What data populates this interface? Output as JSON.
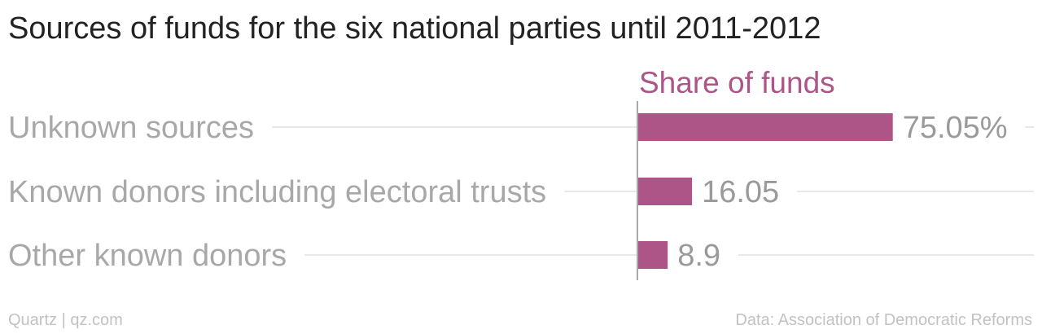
{
  "title": "Sources of funds for the six national parties until 2011-2012",
  "footer": {
    "credit": "Quartz | qz.com",
    "source": "Data: Association of Democratic Reforms"
  },
  "colors": {
    "bar": "#ad5587",
    "series_label": "#ad5587",
    "category_label": "#a8a8a8",
    "value_label": "#9a9a9a",
    "gridline": "#e8e8e8",
    "axis": "#aaaaaa"
  },
  "chart_data": {
    "type": "bar",
    "orientation": "horizontal",
    "categories": [
      "Unknown sources",
      "Known donors including electoral trusts",
      "Other known donors"
    ],
    "series": [
      {
        "name": "Share of funds",
        "values": [
          75.05,
          16.05,
          8.9
        ]
      }
    ],
    "value_labels": [
      "75.05%",
      "16.05",
      "8.9"
    ],
    "xlim": [
      0,
      100
    ],
    "grid": true
  }
}
